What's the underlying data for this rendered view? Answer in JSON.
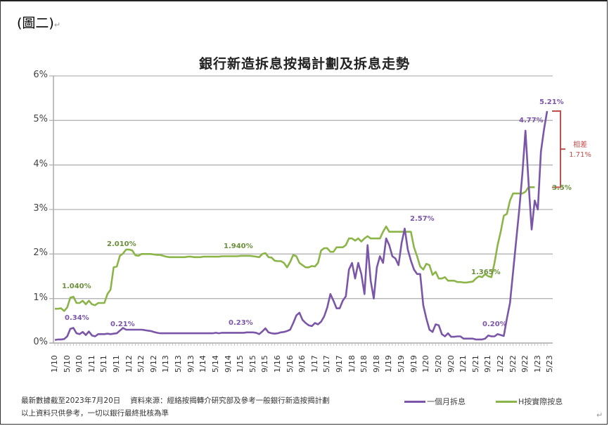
{
  "document": {
    "figure_label": "(圖二)",
    "paragraph_mark": "↵"
  },
  "chart_data": {
    "type": "line",
    "title": "銀行新造拆息按揭計劃及拆息走勢",
    "xlabel": "",
    "ylabel": "",
    "ylim": [
      0,
      6
    ],
    "yticks": [
      "0%",
      "1%",
      "2%",
      "3%",
      "4%",
      "5%",
      "6%"
    ],
    "grid": true,
    "legend_position": "bottom-right",
    "x_tick_labels": [
      "1/10",
      "5/10",
      "9/10",
      "1/11",
      "5/11",
      "9/11",
      "1/12",
      "5/12",
      "9/12",
      "1/13",
      "5/13",
      "9/13",
      "1/14",
      "5/14",
      "9/14",
      "1/15",
      "5/15",
      "9/15",
      "1/16",
      "5/16",
      "9/16",
      "1/17",
      "5/17",
      "9/17",
      "1/18",
      "5/18",
      "9/18",
      "1/19",
      "5/19",
      "9/19",
      "1/20",
      "5/20",
      "9/20",
      "1/21",
      "5/21",
      "9/21",
      "1/22",
      "5/22",
      "9/22",
      "1/23",
      "5/23"
    ],
    "series": [
      {
        "name": "一個月拆息",
        "color": "#7b56a8",
        "values": [
          0.07,
          0.08,
          0.08,
          0.09,
          0.15,
          0.32,
          0.34,
          0.22,
          0.2,
          0.25,
          0.18,
          0.26,
          0.17,
          0.15,
          0.2,
          0.2,
          0.2,
          0.21,
          0.2,
          0.21,
          0.22,
          0.28,
          0.34,
          0.3,
          0.3,
          0.3,
          0.3,
          0.3,
          0.3,
          0.29,
          0.28,
          0.27,
          0.25,
          0.23,
          0.22,
          0.22,
          0.22,
          0.22,
          0.22,
          0.22,
          0.22,
          0.22,
          0.22,
          0.22,
          0.22,
          0.22,
          0.22,
          0.22,
          0.22,
          0.22,
          0.22,
          0.22,
          0.23,
          0.22,
          0.23,
          0.23,
          0.23,
          0.23,
          0.23,
          0.23,
          0.23,
          0.23,
          0.24,
          0.24,
          0.24,
          0.23,
          0.2,
          0.26,
          0.33,
          0.24,
          0.22,
          0.21,
          0.22,
          0.24,
          0.25,
          0.27,
          0.3,
          0.45,
          0.62,
          0.68,
          0.52,
          0.45,
          0.4,
          0.38,
          0.45,
          0.42,
          0.48,
          0.6,
          0.8,
          1.1,
          0.95,
          0.78,
          0.78,
          0.95,
          1.05,
          1.65,
          1.8,
          1.45,
          1.8,
          1.55,
          1.1,
          2.2,
          1.4,
          1.0,
          1.7,
          1.95,
          1.8,
          2.35,
          2.2,
          1.95,
          1.9,
          1.75,
          2.25,
          2.57,
          2.1,
          1.85,
          1.65,
          1.55,
          1.55,
          0.85,
          0.55,
          0.3,
          0.25,
          0.42,
          0.4,
          0.2,
          0.15,
          0.22,
          0.14,
          0.14,
          0.15,
          0.15,
          0.1,
          0.1,
          0.1,
          0.1,
          0.08,
          0.08,
          0.08,
          0.1,
          0.17,
          0.15,
          0.15,
          0.2,
          0.18,
          0.16,
          0.55,
          0.9,
          1.6,
          2.3,
          3.0,
          3.8,
          4.77,
          3.6,
          2.55,
          3.2,
          3.0,
          4.3,
          4.8,
          5.21
        ]
      },
      {
        "name": "H按實際按息",
        "color": "#8cb549",
        "values": [
          0.77,
          0.77,
          0.78,
          0.72,
          0.8,
          1.02,
          1.04,
          0.9,
          0.9,
          0.95,
          0.87,
          0.95,
          0.87,
          0.85,
          0.9,
          0.9,
          0.9,
          1.1,
          1.2,
          1.7,
          1.72,
          1.96,
          2.01,
          2.1,
          2.1,
          2.08,
          1.97,
          1.96,
          2.0,
          2.0,
          2.0,
          2.0,
          1.99,
          1.98,
          1.98,
          1.96,
          1.94,
          1.93,
          1.93,
          1.93,
          1.93,
          1.93,
          1.93,
          1.94,
          1.94,
          1.93,
          1.93,
          1.93,
          1.94,
          1.94,
          1.94,
          1.94,
          1.94,
          1.94,
          1.95,
          1.95,
          1.95,
          1.95,
          1.95,
          1.95,
          1.96,
          1.96,
          1.96,
          1.96,
          1.95,
          1.94,
          1.93,
          2.0,
          2.02,
          1.93,
          1.92,
          1.85,
          1.84,
          1.84,
          1.8,
          1.7,
          1.82,
          1.98,
          1.95,
          1.8,
          1.75,
          1.7,
          1.7,
          1.73,
          1.72,
          1.8,
          2.08,
          2.13,
          2.13,
          2.05,
          2.05,
          2.15,
          2.15,
          2.15,
          2.2,
          2.35,
          2.35,
          2.3,
          2.35,
          2.28,
          2.35,
          2.4,
          2.35,
          2.35,
          2.35,
          2.35,
          2.5,
          2.62,
          2.5,
          2.5,
          2.5,
          2.5,
          2.5,
          2.5,
          2.5,
          2.5,
          2.15,
          1.95,
          1.72,
          1.65,
          1.78,
          1.75,
          1.53,
          1.6,
          1.45,
          1.45,
          1.48,
          1.4,
          1.4,
          1.4,
          1.37,
          1.37,
          1.36,
          1.36,
          1.37,
          1.38,
          1.45,
          1.5,
          1.48,
          1.55,
          1.5,
          1.48,
          1.8,
          2.2,
          2.5,
          2.86,
          2.9,
          3.2,
          3.36,
          3.36,
          3.36,
          3.36,
          3.4,
          3.5,
          3.5,
          3.5
        ]
      }
    ],
    "annotations": [
      {
        "text": "1.040%",
        "series": "H按實際按息"
      },
      {
        "text": "2.010%",
        "series": "H按實際按息"
      },
      {
        "text": "1.940%",
        "series": "H按實際按息"
      },
      {
        "text": "1.365%",
        "series": "H按實際按息"
      },
      {
        "text": "3.5%",
        "series": "H按實際按息"
      },
      {
        "text": "0.34%",
        "series": "一個月拆息"
      },
      {
        "text": "0.21%",
        "series": "一個月拆息"
      },
      {
        "text": "0.23%",
        "series": "一個月拆息"
      },
      {
        "text": "2.57%",
        "series": "一個月拆息"
      },
      {
        "text": "0.20%",
        "series": "一個月拆息"
      },
      {
        "text": "4.77%",
        "series": "一個月拆息"
      },
      {
        "text": "5.21%",
        "series": "一個月拆息"
      }
    ],
    "difference_bracket": {
      "label": "相差",
      "value": "1.71%",
      "color": "#c0504d"
    }
  },
  "footer": {
    "source_line": "最新數據截至2023年7月20日　 資料來源：經絡按揭轉介研究部及參考一般銀行新造按揭計劃",
    "disclaimer": "以上資料只供參考，一切以銀行最終批核為準"
  },
  "legend": [
    {
      "label": "一個月拆息",
      "color": "#7b56a8"
    },
    {
      "label": "H按實際按息",
      "color": "#8cb549"
    }
  ]
}
